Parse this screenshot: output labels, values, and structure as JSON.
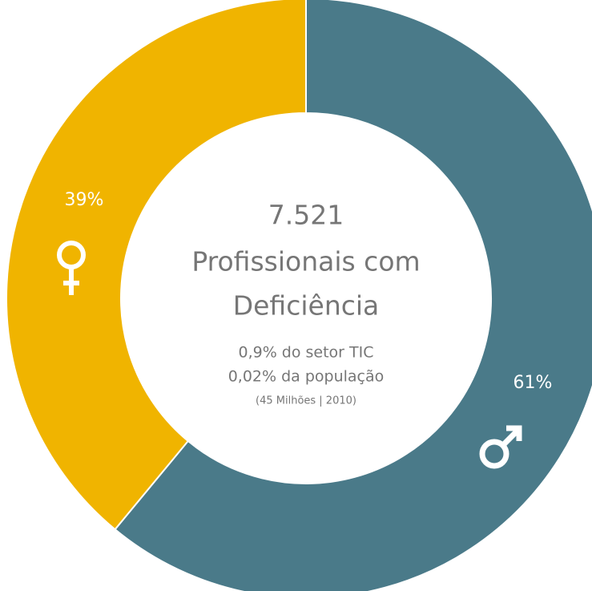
{
  "chart_data": {
    "type": "donut",
    "values": [
      61,
      39
    ],
    "value_labels": [
      "61%",
      "39%"
    ],
    "colors": [
      "#4a7a89",
      "#f0b400"
    ],
    "center_text": [
      "7.521",
      "Profissionais com",
      "Deficiência"
    ],
    "notes": [
      "0,9% do setor TIC",
      "0,02% da população"
    ],
    "footnote": "(45 Milhões | 2010)"
  }
}
